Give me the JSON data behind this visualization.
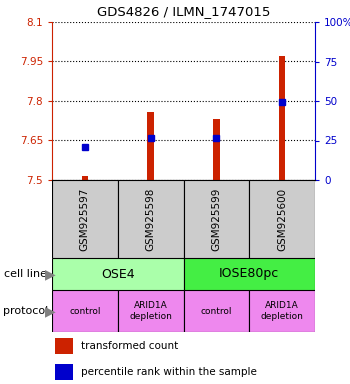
{
  "title": "GDS4826 / ILMN_1747015",
  "samples": [
    "GSM925597",
    "GSM925598",
    "GSM925599",
    "GSM925600"
  ],
  "red_bar_values": [
    7.515,
    7.76,
    7.73,
    7.97
  ],
  "blue_dot_values": [
    7.625,
    7.658,
    7.658,
    7.795
  ],
  "ylim_left": [
    7.5,
    8.1
  ],
  "ylim_right": [
    0,
    100
  ],
  "yticks_left": [
    7.5,
    7.65,
    7.8,
    7.95,
    8.1
  ],
  "yticks_right": [
    0,
    25,
    50,
    75,
    100
  ],
  "ytick_labels_left": [
    "7.5",
    "7.65",
    "7.8",
    "7.95",
    "8.1"
  ],
  "ytick_labels_right": [
    "0",
    "25",
    "50",
    "75",
    "100%"
  ],
  "cell_line_labels": [
    "OSE4",
    "IOSE80pc"
  ],
  "cell_line_colors": [
    "#aaffaa",
    "#44ee44"
  ],
  "protocol_labels": [
    "control",
    "ARID1A\ndepletion",
    "control",
    "ARID1A\ndepletion"
  ],
  "protocol_color": "#ee88ee",
  "bar_color": "#cc2200",
  "dot_color": "#0000cc",
  "sample_box_color": "#cccccc",
  "left_axis_color": "#cc2200",
  "right_axis_color": "#0000cc",
  "bar_width": 0.1
}
